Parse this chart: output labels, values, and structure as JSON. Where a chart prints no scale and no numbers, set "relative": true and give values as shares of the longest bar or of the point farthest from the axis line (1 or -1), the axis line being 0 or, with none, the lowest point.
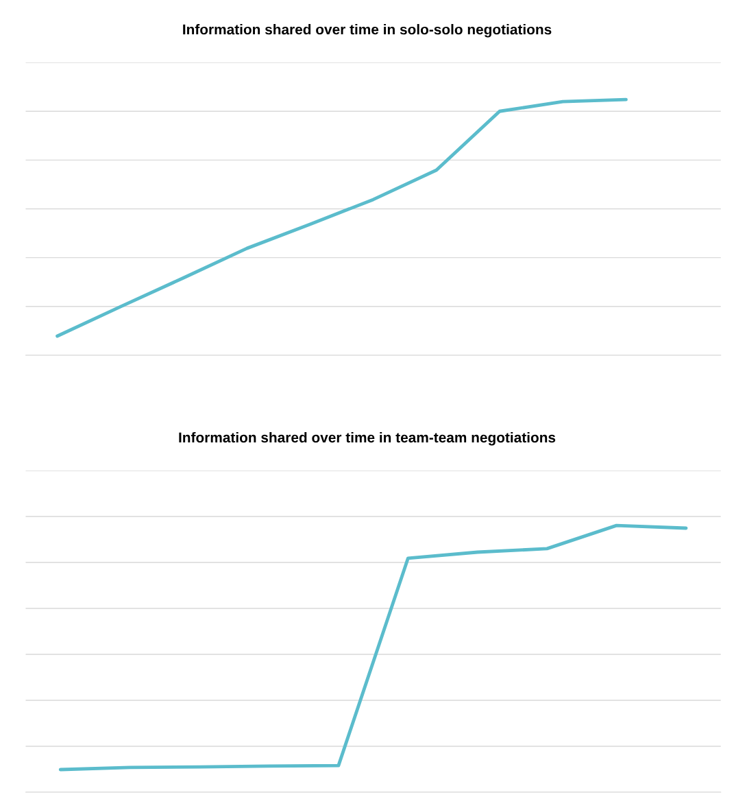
{
  "chart_data": [
    {
      "type": "line",
      "title": "Information shared over time in solo-solo negotiations",
      "relative": true,
      "grid": "y",
      "marker": "none",
      "line_style": "solid",
      "categories": [
        null,
        null,
        null,
        null,
        null,
        null,
        null,
        null,
        null,
        null,
        null
      ],
      "series": [
        {
          "color": "#5bbccc",
          "values": [
            0.075,
            0.19,
            0.303,
            0.418,
            0.512,
            0.609,
            0.724,
            0.954,
            0.992,
            1,
            null
          ]
        }
      ]
    },
    {
      "type": "line",
      "title": "Information shared over time in team-team negotiations",
      "relative": true,
      "grid": "y",
      "marker": "none",
      "line_style": "solid",
      "categories": [
        null,
        null,
        null,
        null,
        null,
        null,
        null,
        null,
        null,
        null
      ],
      "series": [
        {
          "color": "#5bbccc",
          "values": [
            0.085,
            0.093,
            0.095,
            0.098,
            0.1,
            0.877,
            0.9,
            0.913,
            1,
            0.99
          ]
        }
      ]
    }
  ]
}
